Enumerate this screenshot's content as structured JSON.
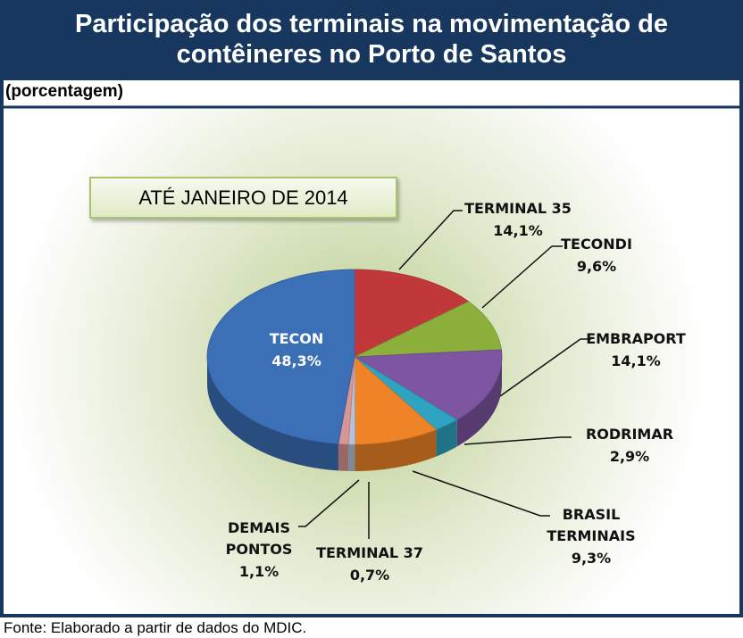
{
  "chart_data": {
    "type": "pie",
    "title": "Participação dos terminais na movimentação de contêineres no Porto de Santos",
    "subtitle": "(porcentagem)",
    "annotation": "ATÉ JANEIRO DE 2014",
    "source": "Fonte: Elaborado a partir de dados do MDIC.",
    "categories": [
      "TERMINAL 35",
      "TECONDI",
      "EMBRAPORT",
      "RODRIMAR",
      "BRASIL TERMINAIS",
      "TERMINAL 37",
      "DEMAIS PONTOS",
      "TECON"
    ],
    "values": [
      14.1,
      9.6,
      14.1,
      2.9,
      9.3,
      0.7,
      1.1,
      48.3
    ],
    "value_labels": [
      "14,1%",
      "9,6%",
      "14,1%",
      "2,9%",
      "9,3%",
      "0,7%",
      "1,1%",
      "48,3%"
    ],
    "colors": [
      "#c0383a",
      "#8db03c",
      "#7d55a0",
      "#2fa3c2",
      "#ee8427",
      "#b3c3dc",
      "#d99594",
      "#3b6fb6"
    ]
  }
}
